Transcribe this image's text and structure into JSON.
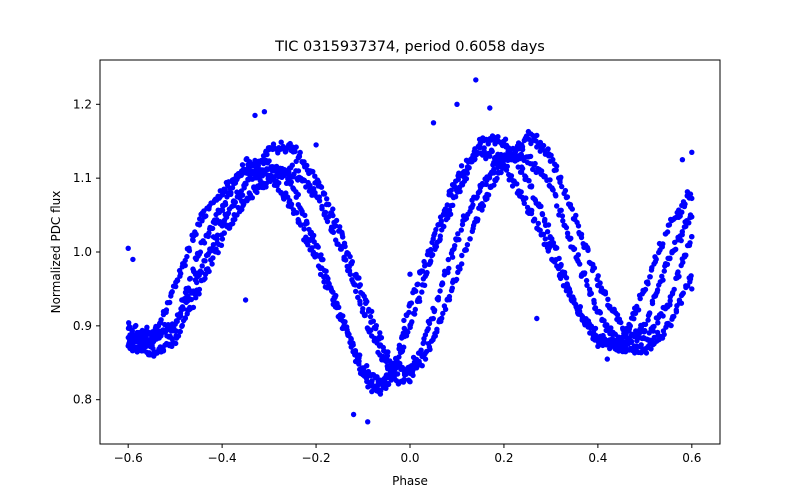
{
  "chart_data": {
    "type": "scatter",
    "title": "TIC 0315937374, period 0.6058 days",
    "xlabel": "Phase",
    "ylabel": "Normalized PDC flux",
    "xlim": [
      -0.66,
      0.66
    ],
    "ylim": [
      0.74,
      1.26
    ],
    "xticks": [
      -0.6,
      -0.4,
      -0.2,
      0.0,
      0.2,
      0.4,
      0.6
    ],
    "xtick_labels": [
      "−0.6",
      "−0.4",
      "−0.2",
      "0.0",
      "0.2",
      "0.4",
      "0.6"
    ],
    "yticks": [
      0.8,
      0.9,
      1.0,
      1.1,
      1.2
    ],
    "ytick_labels": [
      "0.8",
      "0.9",
      "1.0",
      "1.1",
      "1.2"
    ],
    "grid": false,
    "marker_color": "#0000ff",
    "x_range": [
      -0.6,
      0.6
    ],
    "bands": [
      [
        [
          -0.6,
          0.885
        ],
        [
          -0.55,
          0.875
        ],
        [
          -0.5,
          0.955
        ],
        [
          -0.45,
          1.04
        ],
        [
          -0.4,
          1.085
        ],
        [
          -0.35,
          1.11
        ],
        [
          -0.3,
          1.105
        ],
        [
          -0.25,
          1.06
        ],
        [
          -0.2,
          0.99
        ],
        [
          -0.15,
          0.915
        ],
        [
          -0.1,
          0.84
        ],
        [
          -0.07,
          0.825
        ],
        [
          -0.04,
          0.83
        ],
        [
          0.0,
          0.93
        ],
        [
          0.05,
          1.02
        ],
        [
          0.1,
          1.1
        ],
        [
          0.15,
          1.14
        ],
        [
          0.2,
          1.12
        ],
        [
          0.25,
          1.06
        ],
        [
          0.3,
          1.0
        ],
        [
          0.35,
          0.93
        ],
        [
          0.4,
          0.885
        ],
        [
          0.45,
          0.875
        ],
        [
          0.5,
          0.95
        ],
        [
          0.55,
          1.035
        ],
        [
          0.6,
          1.08
        ]
      ],
      [
        [
          -0.6,
          0.875
        ],
        [
          -0.55,
          0.86
        ],
        [
          -0.5,
          0.88
        ],
        [
          -0.45,
          0.95
        ],
        [
          -0.4,
          1.02
        ],
        [
          -0.35,
          1.07
        ],
        [
          -0.3,
          1.1
        ],
        [
          -0.25,
          1.11
        ],
        [
          -0.2,
          1.08
        ],
        [
          -0.15,
          1.01
        ],
        [
          -0.1,
          0.92
        ],
        [
          -0.06,
          0.855
        ],
        [
          -0.02,
          0.82
        ],
        [
          0.02,
          0.86
        ],
        [
          0.06,
          0.94
        ],
        [
          0.1,
          1.02
        ],
        [
          0.15,
          1.09
        ],
        [
          0.2,
          1.13
        ],
        [
          0.25,
          1.13
        ],
        [
          0.3,
          1.09
        ],
        [
          0.35,
          1.0
        ],
        [
          0.4,
          0.92
        ],
        [
          0.45,
          0.875
        ],
        [
          0.5,
          0.865
        ],
        [
          0.55,
          0.9
        ],
        [
          0.6,
          0.97
        ]
      ],
      [
        [
          -0.6,
          0.88
        ],
        [
          -0.55,
          0.89
        ],
        [
          -0.5,
          0.9
        ],
        [
          -0.45,
          0.97
        ],
        [
          -0.4,
          1.04
        ],
        [
          -0.35,
          1.09
        ],
        [
          -0.3,
          1.14
        ],
        [
          -0.25,
          1.14
        ],
        [
          -0.2,
          1.1
        ],
        [
          -0.15,
          1.03
        ],
        [
          -0.1,
          0.94
        ],
        [
          -0.05,
          0.86
        ],
        [
          0.0,
          0.83
        ],
        [
          0.05,
          0.88
        ],
        [
          0.1,
          0.97
        ],
        [
          0.15,
          1.06
        ],
        [
          0.2,
          1.12
        ],
        [
          0.25,
          1.16
        ],
        [
          0.3,
          1.13
        ],
        [
          0.35,
          1.05
        ],
        [
          0.4,
          0.96
        ],
        [
          0.45,
          0.9
        ],
        [
          0.5,
          0.88
        ],
        [
          0.55,
          0.93
        ],
        [
          0.6,
          1.02
        ]
      ],
      [
        [
          -0.6,
          0.9
        ],
        [
          -0.55,
          0.88
        ],
        [
          -0.5,
          0.9
        ],
        [
          -0.45,
          1.0
        ],
        [
          -0.4,
          1.06
        ],
        [
          -0.35,
          1.12
        ],
        [
          -0.3,
          1.12
        ],
        [
          -0.25,
          1.09
        ],
        [
          -0.2,
          1.01
        ],
        [
          -0.15,
          0.92
        ],
        [
          -0.1,
          0.83
        ],
        [
          -0.07,
          0.81
        ],
        [
          -0.04,
          0.83
        ],
        [
          0.0,
          0.9
        ],
        [
          0.05,
          1.0
        ],
        [
          0.1,
          1.08
        ],
        [
          0.15,
          1.15
        ],
        [
          0.2,
          1.15
        ],
        [
          0.25,
          1.1
        ],
        [
          0.3,
          1.02
        ],
        [
          0.35,
          0.93
        ],
        [
          0.4,
          0.88
        ],
        [
          0.45,
          0.87
        ],
        [
          0.5,
          0.9
        ],
        [
          0.55,
          0.99
        ],
        [
          0.6,
          1.05
        ]
      ]
    ],
    "outliers": [
      [
        -0.6,
        1.005
      ],
      [
        -0.59,
        0.99
      ],
      [
        -0.31,
        1.19
      ],
      [
        -0.33,
        1.185
      ],
      [
        0.14,
        1.233
      ],
      [
        0.05,
        1.175
      ],
      [
        0.1,
        1.2
      ],
      [
        0.17,
        1.195
      ],
      [
        -0.2,
        1.145
      ],
      [
        0.6,
        1.135
      ],
      [
        0.58,
        1.125
      ],
      [
        0.27,
        0.91
      ],
      [
        -0.12,
        0.78
      ],
      [
        -0.09,
        0.77
      ],
      [
        0.42,
        0.855
      ],
      [
        0.6,
        0.95
      ],
      [
        -0.35,
        0.935
      ],
      [
        0.0,
        0.97
      ]
    ]
  }
}
